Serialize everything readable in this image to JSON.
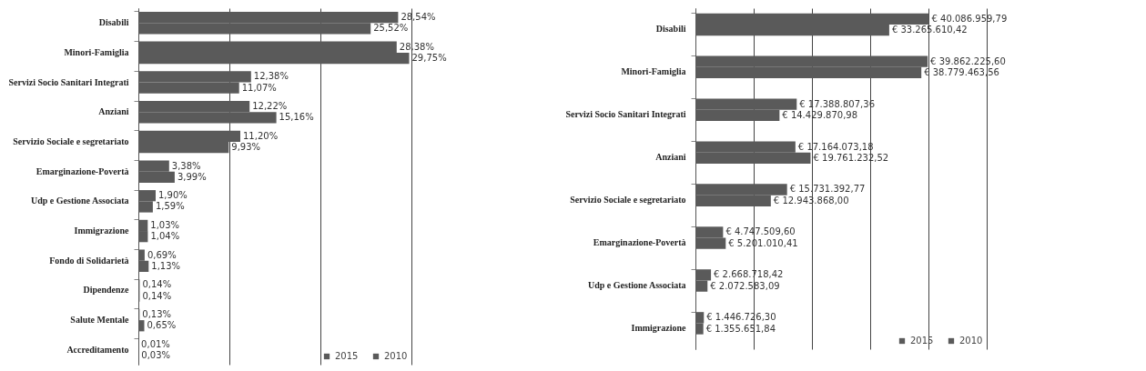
{
  "chart_data": [
    {
      "type": "bar",
      "orientation": "horizontal",
      "categories": [
        "Disabili",
        "Minori-Famiglia",
        "Servizi Socio Sanitari Integrati",
        "Anziani",
        "Servizio Sociale e segretariato",
        "Emarginazione-Povertà",
        "Udp e Gestione Associata",
        "Immigrazione",
        "Fondo di Solidarietà",
        "Dipendenze",
        "Salute Mentale",
        "Accreditamento"
      ],
      "series": [
        {
          "name": "2015",
          "color": "#5a5a5a",
          "values": [
            28.54,
            28.38,
            12.38,
            12.22,
            11.2,
            3.38,
            1.9,
            1.03,
            0.69,
            0.14,
            0.13,
            0.01
          ],
          "value_labels": [
            "28,54%",
            "28,38%",
            "12,38%",
            "12,22%",
            "11,20%",
            "3,38%",
            "1,90%",
            "1,03%",
            "0,69%",
            "0,14%",
            "0,13%",
            "0,01%"
          ]
        },
        {
          "name": "2010",
          "color": "#5a5a5a",
          "values": [
            25.52,
            29.75,
            11.07,
            15.16,
            9.93,
            3.99,
            1.59,
            1.04,
            1.13,
            0.14,
            0.65,
            0.03
          ],
          "value_labels": [
            "25,52%",
            "29,75%",
            "11,07%",
            "15,16%",
            "9,93%",
            "3,99%",
            "1,59%",
            "1,04%",
            "1,13%",
            "0,14%",
            "0,65%",
            "0,03%"
          ]
        }
      ],
      "xlim": [
        0,
        30
      ],
      "xticks": [
        {
          "value": 0,
          "label": null
        },
        {
          "value": 10,
          "label": null
        },
        {
          "value": 20,
          "label": null
        },
        {
          "value": 30,
          "label": null
        }
      ],
      "grid": "x",
      "legend": "bottom right",
      "tick_labels": "y"
    },
    {
      "type": "bar",
      "orientation": "horizontal",
      "categories": [
        "Disabili",
        "Minori-Famiglia",
        "Servizi Socio Sanitari Integrati",
        "Anziani",
        "Servizio Sociale e segretariato",
        "Emarginazione-Povertà",
        "Udp e Gestione Associata",
        "Immigrazione"
      ],
      "series": [
        {
          "name": "2015",
          "color": "#5a5a5a",
          "values": [
            40086959.79,
            39862225.6,
            17388807.36,
            17164073.18,
            15731392.77,
            4747509.6,
            2668718.42,
            1446726.3
          ],
          "value_labels": [
            "€ 40.086.959,79",
            "€ 39.862.225,60",
            "€ 17.388.807,36",
            "€ 17.164.073,18",
            "€ 15.731.392,77",
            "€ 4.747.509,60",
            "€ 2.668.718,42",
            "€ 1.446.726,30"
          ]
        },
        {
          "name": "2010",
          "color": "#5a5a5a",
          "values": [
            33265610.42,
            38779463.56,
            14429870.98,
            19761232.52,
            12943868.0,
            5201010.41,
            2072583.09,
            1355651.84
          ],
          "value_labels": [
            "€ 33.265.610,42",
            "€ 38.779.463,56",
            "€ 14.429.870,98",
            "€ 19.761.232,52",
            "€ 12.943.868,00",
            "€ 5.201.010,41",
            "€ 2.072.583,09",
            "€ 1.355.651,84"
          ]
        }
      ],
      "xlim": [
        0,
        50000000
      ],
      "xticks": [
        {
          "value": 0,
          "label": null
        },
        {
          "value": 10000000,
          "label": null
        },
        {
          "value": 20000000,
          "label": null
        },
        {
          "value": 30000000,
          "label": null
        },
        {
          "value": 40000000,
          "label": null
        },
        {
          "value": 50000000,
          "label": null
        }
      ],
      "grid": "x",
      "legend": "bottom right",
      "tick_labels": "y"
    }
  ]
}
